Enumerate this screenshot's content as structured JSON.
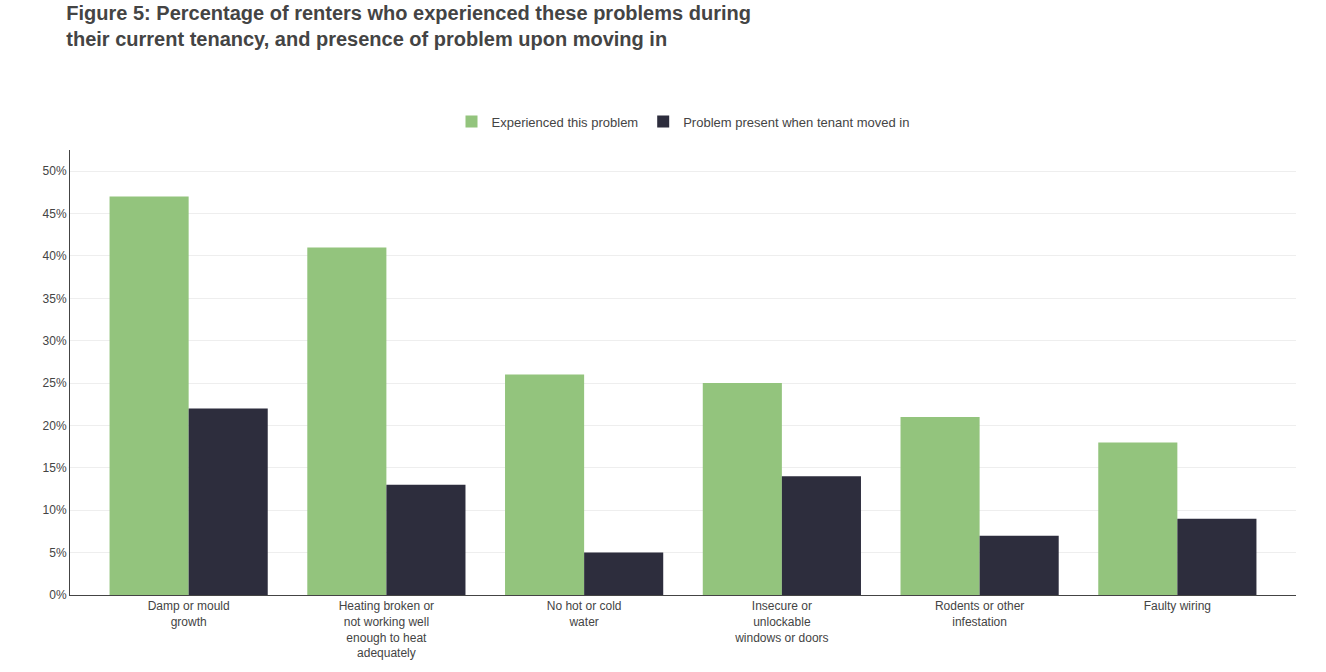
{
  "chart_data": {
    "type": "bar",
    "title": "Figure 5: Percentage of renters who experienced these problems during\ntheir current tenancy, and presence of problem upon moving in",
    "categories": [
      "Damp or mould\ngrowth",
      "Heating broken or\nnot working well\nenough to heat\nadequately",
      "No hot or cold\nwater",
      "Insecure or\nunlockable\nwindows or doors",
      "Rodents or other\ninfestation",
      "Faulty wiring"
    ],
    "series": [
      {
        "name": "Experienced this problem",
        "color": "#93c47d",
        "values": [
          0.47,
          0.41,
          0.26,
          0.25,
          0.21,
          0.18
        ]
      },
      {
        "name": "Problem present when tenant moved in",
        "color": "#2d2d3d",
        "values": [
          0.22,
          0.13,
          0.05,
          0.14,
          0.07,
          0.09
        ]
      }
    ],
    "ylim": [
      0,
      0.525
    ],
    "yticks": [
      {
        "value": 0.0,
        "label": "0%"
      },
      {
        "value": 0.05,
        "label": "5%"
      },
      {
        "value": 0.1,
        "label": "10%"
      },
      {
        "value": 0.15,
        "label": "15%"
      },
      {
        "value": 0.2,
        "label": "20%"
      },
      {
        "value": 0.25,
        "label": "25%"
      },
      {
        "value": 0.3,
        "label": "30%"
      },
      {
        "value": 0.35,
        "label": "35%"
      },
      {
        "value": 0.4,
        "label": "40%"
      },
      {
        "value": 0.45,
        "label": "45%"
      },
      {
        "value": 0.5,
        "label": "50%"
      }
    ],
    "grid": true,
    "legend": "top"
  }
}
